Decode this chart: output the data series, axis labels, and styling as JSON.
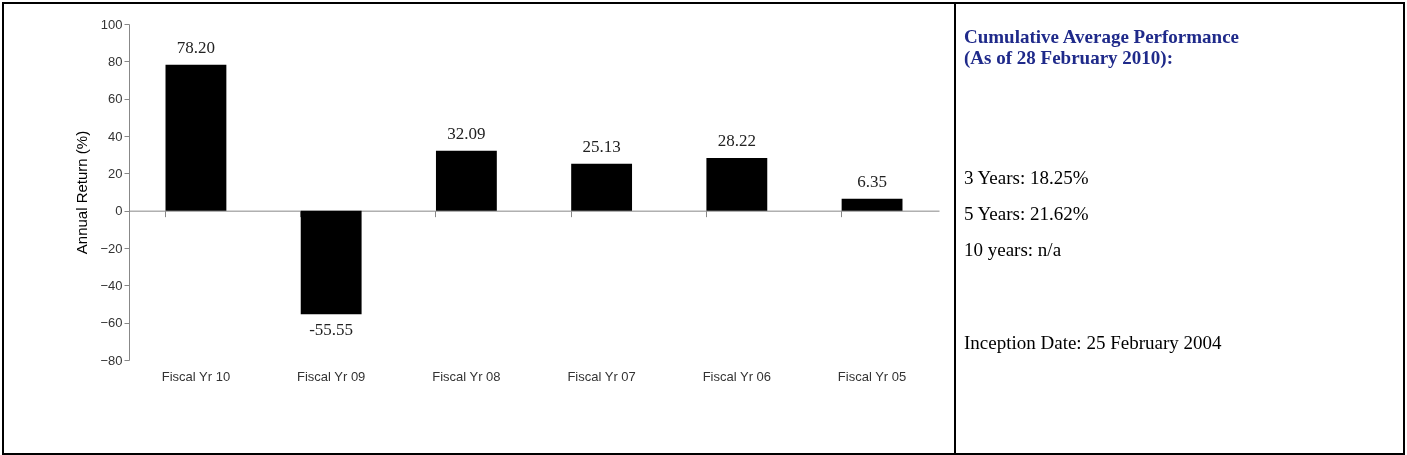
{
  "chart_data": [
    {
      "type": "bar",
      "ylabel": "Annual Return (%)",
      "categories": [
        "Fiscal Yr 10",
        "Fiscal Yr 09",
        "Fiscal Yr 08",
        "Fiscal Yr 07",
        "Fiscal Yr 06",
        "Fiscal Yr 05"
      ],
      "series": [
        {
          "color": "#000000",
          "values": [
            78.2,
            -55.55,
            32.09,
            25.13,
            28.22,
            6.35
          ]
        }
      ],
      "value_labels": [
        "78.20",
        "-55.55",
        "32.09",
        "25.13",
        "28.22",
        "6.35"
      ],
      "ylim": [
        -80,
        100
      ],
      "yticks": [
        -80,
        -60,
        -40,
        -20,
        0,
        20,
        40,
        60,
        80,
        100
      ]
    },
    {
      "type": "other",
      "title": "Cumulative Average Performance (As of 28 February 2010):",
      "annotations": [
        "3 Years:     18.25%",
        "5 Years:     21.62%",
        "10 years:   n/a",
        "Inception Date: 25 February 2004"
      ]
    }
  ]
}
